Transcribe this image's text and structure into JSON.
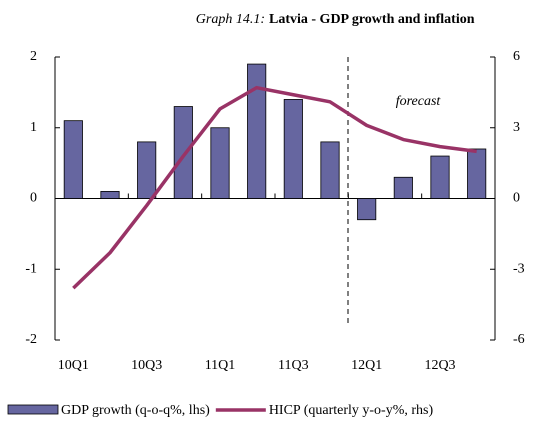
{
  "chart_data": {
    "type": "bar_line",
    "title_prefix": "Graph 14.1:",
    "title": "Latvia - GDP growth and inflation",
    "categories": [
      "10Q1",
      null,
      "10Q3",
      null,
      "11Q1",
      null,
      "11Q3",
      null,
      "12Q1",
      null,
      "12Q3",
      null
    ],
    "series": [
      {
        "name": "GDP growth (q-o-q%, lhs)",
        "type": "bar",
        "color": "#6666a0",
        "values": [
          1.1,
          0.1,
          0.8,
          1.3,
          1.0,
          1.9,
          1.4,
          0.8,
          -0.3,
          0.3,
          0.6,
          0.7
        ]
      },
      {
        "name": "HICP (quarterly y-o-y%, rhs)",
        "type": "line",
        "axis": "y2",
        "color": "#993366",
        "values": [
          -3.8,
          -2.3,
          -0.3,
          1.8,
          3.8,
          4.7,
          4.4,
          4.1,
          3.1,
          2.5,
          2.2,
          2.0
        ]
      }
    ],
    "ylim": [
      -2,
      2
    ],
    "yticks": [
      -2,
      -1,
      0,
      1,
      2
    ],
    "y2lim": [
      -6,
      6
    ],
    "y2ticks": [
      -6,
      -3,
      0,
      3,
      6
    ],
    "annotation": "forecast",
    "legend": "bottom"
  }
}
